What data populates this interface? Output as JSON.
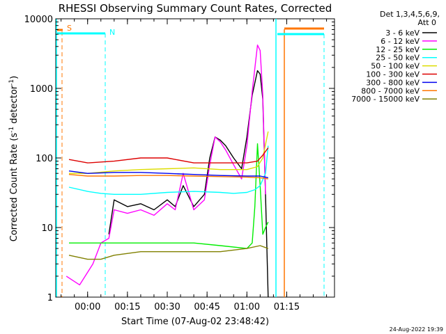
{
  "chart_data": {
    "type": "line",
    "title": "RHESSI Observing Summary Count Rates, Corrected",
    "xlabel": "Start Time (07-Aug-02 23:48:42)",
    "ylabel": "Corrected Count Rate (s⁻¹ detector⁻¹)",
    "ylabel_main": "Corrected Count Rate (s",
    "ylabel_mid": " detector",
    "ylabel_end": ")",
    "ylabel_sup": "-1",
    "y_scale": "log",
    "ylim": [
      1,
      10000
    ],
    "xlim": [
      "23:48:42",
      "01:33:00"
    ],
    "x_ticks": [
      "00:00",
      "00:15",
      "00:30",
      "00:45",
      "01:00",
      "01:15"
    ],
    "y_ticks": [
      "1",
      "10",
      "100",
      "1000",
      "10000"
    ],
    "legend_header": [
      "Det 1,3,4,5,6,9,",
      "Att 0"
    ],
    "legend_position": "top-right outside",
    "footer_date": "24-Aug-2022 19:39",
    "flag_labels": {
      "saa": "S",
      "night": "N"
    },
    "series": [
      {
        "name": "3 - 6 keV",
        "color": "#000000",
        "x": [
          "00:08",
          "00:10",
          "00:15",
          "00:20",
          "00:25",
          "00:30",
          "00:33",
          "00:36",
          "00:40",
          "00:44",
          "00:46",
          "00:48",
          "00:50",
          "00:52",
          "00:55",
          "00:58",
          "01:00",
          "01:02",
          "01:04",
          "01:05",
          "01:06",
          "01:07",
          "01:08"
        ],
        "y": [
          8,
          25,
          20,
          22,
          18,
          25,
          20,
          40,
          20,
          30,
          100,
          200,
          180,
          150,
          100,
          70,
          200,
          800,
          1800,
          1600,
          700,
          30,
          1
        ]
      },
      {
        "name": "6 - 12 keV",
        "color": "#ff00ff",
        "x": [
          "23:52",
          "23:57",
          "00:02",
          "00:05",
          "00:08",
          "00:10",
          "00:15",
          "00:20",
          "00:25",
          "00:30",
          "00:33",
          "00:36",
          "00:40",
          "00:44",
          "00:46",
          "00:48",
          "00:50",
          "00:52",
          "00:55",
          "00:58",
          "01:00",
          "01:02",
          "01:04",
          "01:05",
          "01:06",
          "01:07"
        ],
        "y": [
          2,
          1.5,
          3,
          6,
          7,
          18,
          16,
          18,
          15,
          22,
          18,
          60,
          18,
          25,
          80,
          200,
          170,
          130,
          80,
          50,
          150,
          900,
          4200,
          3500,
          800,
          30
        ]
      },
      {
        "name": "12 - 25 keV",
        "color": "#00ee00",
        "x": [
          "23:53",
          "00:00",
          "00:10",
          "00:20",
          "00:30",
          "00:40",
          "00:50",
          "01:00",
          "01:02",
          "01:03",
          "01:04",
          "01:05",
          "01:06",
          "01:07",
          "01:08"
        ],
        "y": [
          6,
          6,
          6,
          6,
          6,
          6,
          5.5,
          5,
          6,
          20,
          160,
          40,
          8,
          10,
          12
        ]
      },
      {
        "name": "25 - 50 keV",
        "color": "#00ffff",
        "x": [
          "23:53",
          "00:00",
          "00:05",
          "00:10",
          "00:20",
          "00:30",
          "00:40",
          "00:50",
          "00:55",
          "01:00",
          "01:03",
          "01:05",
          "01:07",
          "01:08"
        ],
        "y": [
          38,
          33,
          31,
          30,
          30,
          32,
          33,
          32,
          31,
          32,
          35,
          40,
          60,
          150
        ]
      },
      {
        "name": "50 - 100 keV",
        "color": "#dddd00",
        "x": [
          "23:53",
          "00:00",
          "00:10",
          "00:20",
          "00:30",
          "00:40",
          "00:50",
          "01:00",
          "01:04",
          "01:06",
          "01:08"
        ],
        "y": [
          60,
          60,
          65,
          68,
          70,
          72,
          68,
          68,
          75,
          100,
          240
        ]
      },
      {
        "name": "100 - 300 keV",
        "color": "#dd0000",
        "x": [
          "23:53",
          "00:00",
          "00:10",
          "00:20",
          "00:30",
          "00:40",
          "00:50",
          "01:00",
          "01:04",
          "01:06",
          "01:08"
        ],
        "y": [
          95,
          85,
          90,
          100,
          100,
          85,
          85,
          85,
          90,
          110,
          140
        ]
      },
      {
        "name": "300 - 800 keV",
        "color": "#0000ee",
        "x": [
          "23:53",
          "00:00",
          "00:10",
          "00:20",
          "00:30",
          "00:40",
          "00:50",
          "01:00",
          "01:05",
          "01:08"
        ],
        "y": [
          65,
          60,
          62,
          62,
          60,
          58,
          56,
          55,
          55,
          52
        ]
      },
      {
        "name": "800 - 7000 keV",
        "color": "#ff7700",
        "x": [
          "23:53",
          "00:00",
          "00:10",
          "00:20",
          "00:30",
          "00:40",
          "00:50",
          "01:00",
          "01:05",
          "01:08"
        ],
        "y": [
          58,
          55,
          55,
          56,
          56,
          55,
          54,
          53,
          52,
          50
        ]
      },
      {
        "name": "7000 - 15000 keV",
        "color": "#808000",
        "x": [
          "23:53",
          "00:00",
          "00:05",
          "00:10",
          "00:20",
          "00:30",
          "00:40",
          "00:50",
          "01:00",
          "01:05",
          "01:08"
        ],
        "y": [
          4,
          3.5,
          3.5,
          4,
          4.5,
          4.5,
          4.5,
          4.5,
          5,
          5.5,
          5
        ]
      }
    ]
  }
}
